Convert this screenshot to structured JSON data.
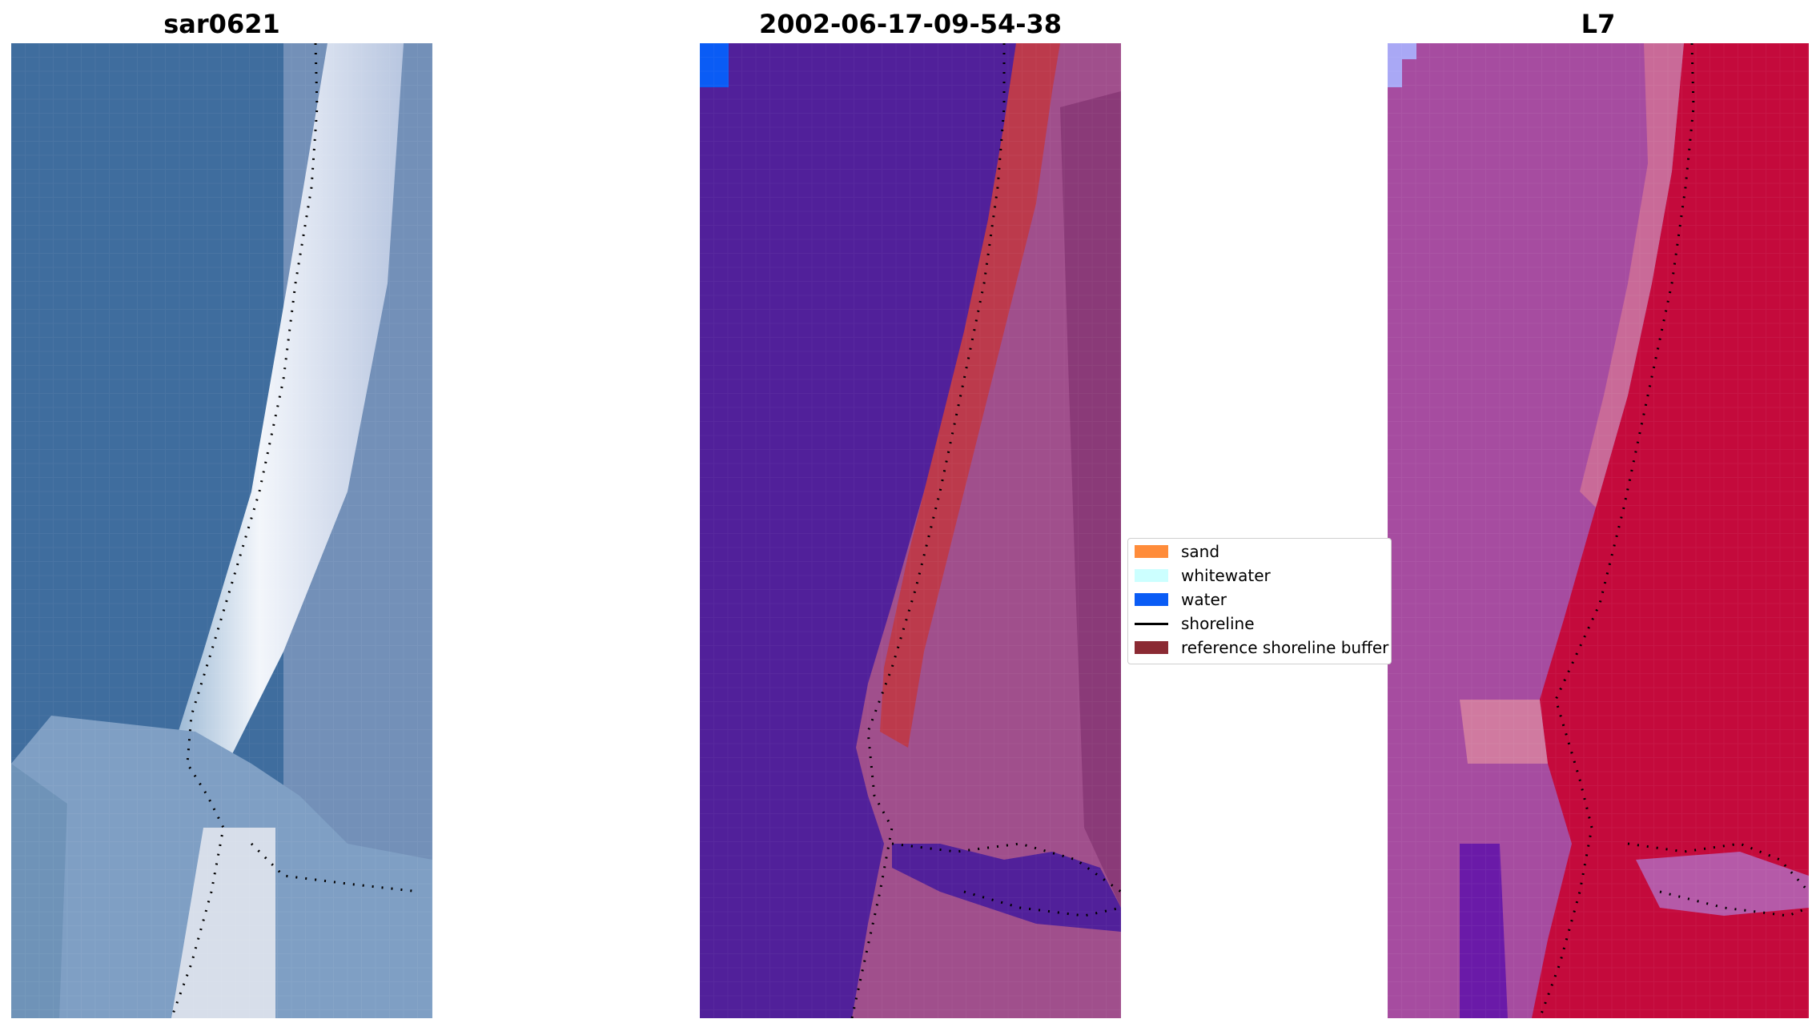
{
  "panels": [
    {
      "title": "sar0621"
    },
    {
      "title": "2002-06-17-09-54-38"
    },
    {
      "title": "L7"
    }
  ],
  "legend": {
    "items": [
      {
        "label": "sand",
        "color": "#ff8c3a",
        "kind": "patch"
      },
      {
        "label": "whitewater",
        "color": "#ccffff",
        "kind": "patch"
      },
      {
        "label": "water",
        "color": "#0a5cf5",
        "kind": "patch"
      },
      {
        "label": "shoreline",
        "color": "#000000",
        "kind": "line"
      },
      {
        "label": "reference shoreline buffer",
        "color": "#8b2a33",
        "kind": "patch"
      }
    ]
  },
  "colors": {
    "sea_rgb": "#3f6d9e",
    "surf_rgb": "#e6ebf5",
    "water_class": "#51209a",
    "buffer_class": "#bc3a4c",
    "land_class": "#a04f8c",
    "l7_land": "#c40a3c",
    "l7_sea": "#a64ca0"
  }
}
